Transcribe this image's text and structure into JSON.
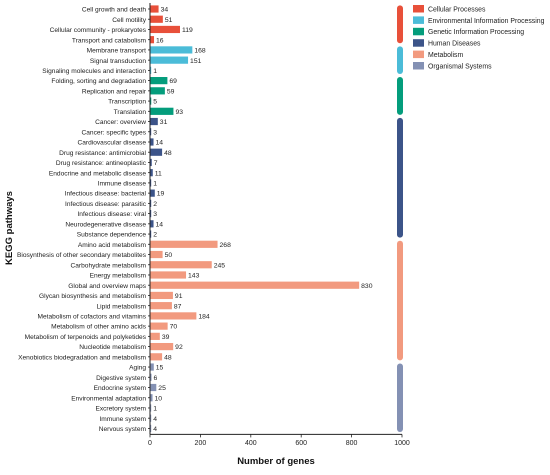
{
  "chart_data": {
    "type": "bar",
    "orientation": "horizontal",
    "xlabel": "Number of genes",
    "ylabel": "KEGG pathways",
    "xlim": [
      0,
      1000
    ],
    "xticks": [
      "0",
      "200",
      "400",
      "600",
      "800",
      "1000"
    ],
    "grid": false,
    "legend_position": "top-right",
    "groups": [
      {
        "name": "Cellular Processes",
        "color": "#e8503a"
      },
      {
        "name": "Environmental Information Processing",
        "color": "#4bbcd8"
      },
      {
        "name": "Genetic Information Processing",
        "color": "#049d7c"
      },
      {
        "name": "Human Diseases",
        "color": "#3c5489"
      },
      {
        "name": "Metabolism",
        "color": "#f29a7f"
      },
      {
        "name": "Organismal Systems",
        "color": "#8491b4"
      }
    ],
    "bars": [
      {
        "label": "Cell growth and death",
        "value": 34,
        "group": 0
      },
      {
        "label": "Cell motility",
        "value": 51,
        "group": 0
      },
      {
        "label": "Cellular community - prokaryotes",
        "value": 119,
        "group": 0
      },
      {
        "label": "Transport and catabolism",
        "value": 16,
        "group": 0
      },
      {
        "label": "Membrane transport",
        "value": 168,
        "group": 1
      },
      {
        "label": "Signal transduction",
        "value": 151,
        "group": 1
      },
      {
        "label": "Signaling molecules and interaction",
        "value": 1,
        "group": 1
      },
      {
        "label": "Folding, sorting and degradation",
        "value": 69,
        "group": 2
      },
      {
        "label": "Replication and repair",
        "value": 59,
        "group": 2
      },
      {
        "label": "Transcription",
        "value": 5,
        "group": 2
      },
      {
        "label": "Translation",
        "value": 93,
        "group": 2
      },
      {
        "label": "Cancer: overview",
        "value": 31,
        "group": 3
      },
      {
        "label": "Cancer: specific types",
        "value": 3,
        "group": 3
      },
      {
        "label": "Cardiovascular disease",
        "value": 14,
        "group": 3
      },
      {
        "label": "Drug resistance: antimicrobial",
        "value": 48,
        "group": 3
      },
      {
        "label": "Drug resistance: antineoplastic",
        "value": 7,
        "group": 3
      },
      {
        "label": "Endocrine and metabolic disease",
        "value": 11,
        "group": 3
      },
      {
        "label": "Immune disease",
        "value": 1,
        "group": 3
      },
      {
        "label": "Infectious disease: bacterial",
        "value": 19,
        "group": 3
      },
      {
        "label": "Infectious disease: parasitic",
        "value": 2,
        "group": 3
      },
      {
        "label": "Infectious disease: viral",
        "value": 3,
        "group": 3
      },
      {
        "label": "Neurodegenerative disease",
        "value": 14,
        "group": 3
      },
      {
        "label": "Substance dependence",
        "value": 2,
        "group": 3
      },
      {
        "label": "Amino acid metabolism",
        "value": 268,
        "group": 4
      },
      {
        "label": "Biosynthesis of other secondary metabolites",
        "value": 50,
        "group": 4
      },
      {
        "label": "Carbohydrate metabolism",
        "value": 245,
        "group": 4
      },
      {
        "label": "Energy metabolism",
        "value": 143,
        "group": 4
      },
      {
        "label": "Global and overview maps",
        "value": 830,
        "group": 4
      },
      {
        "label": "Glycan biosynthesis and metabolism",
        "value": 91,
        "group": 4
      },
      {
        "label": "Lipid metabolism",
        "value": 87,
        "group": 4
      },
      {
        "label": "Metabolism of cofactors and vitamins",
        "value": 184,
        "group": 4
      },
      {
        "label": "Metabolism of other amino acids",
        "value": 70,
        "group": 4
      },
      {
        "label": "Metabolism of terpenoids and polyketides",
        "value": 39,
        "group": 4
      },
      {
        "label": "Nucleotide metabolism",
        "value": 92,
        "group": 4
      },
      {
        "label": "Xenobiotics biodegradation and metabolism",
        "value": 48,
        "group": 4
      },
      {
        "label": "Aging",
        "value": 15,
        "group": 5
      },
      {
        "label": "Digestive system",
        "value": 6,
        "group": 5
      },
      {
        "label": "Endocrine system",
        "value": 25,
        "group": 5
      },
      {
        "label": "Environmental adaptation",
        "value": 10,
        "group": 5
      },
      {
        "label": "Excretory system",
        "value": 1,
        "group": 5
      },
      {
        "label": "Immune system",
        "value": 4,
        "group": 5
      },
      {
        "label": "Nervous system",
        "value": 4,
        "group": 5
      }
    ]
  }
}
